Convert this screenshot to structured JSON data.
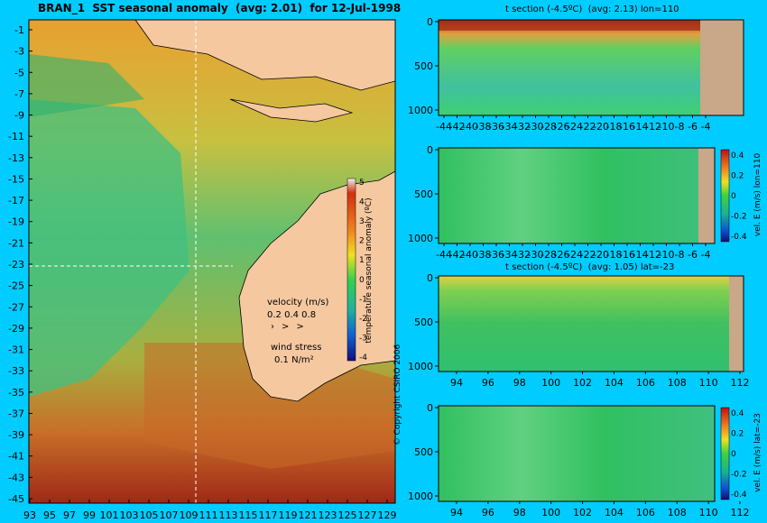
{
  "map": {
    "title": "BRAN_1  SST seasonal anomaly  (avg: 2.01)  for 12-Jul-1998",
    "y_ticks": [
      "-1",
      "-3",
      "-5",
      "-7",
      "-9",
      "-11",
      "-13",
      "-15",
      "-17",
      "-19",
      "-21",
      "-23",
      "-25",
      "-27",
      "-29",
      "-31",
      "-33",
      "-35",
      "-37",
      "-39",
      "-41",
      "-43",
      "-45"
    ],
    "x_ticks": [
      "93",
      "95",
      "97",
      "99",
      "101",
      "103",
      "105",
      "107",
      "109",
      "111",
      "113",
      "115",
      "117",
      "119",
      "121",
      "123",
      "125",
      "127",
      "129"
    ],
    "colorbar_ticks": [
      "5",
      "4",
      "3",
      "2",
      "1",
      "0",
      "-1",
      "-2",
      "-3",
      "-4"
    ],
    "colorbar_label": "temperature seasonal anomaly (ºC)",
    "velocity_label": "velocity (m/s)",
    "velocity_values": "0.2 0.4 0.8",
    "wind_label": "wind stress",
    "wind_value": "0.1 N/m²",
    "copyright": "© Copyright CSIRO 2006",
    "colors": {
      "land": "#f5c8a0",
      "ocean_bg": "#00ccff",
      "warm": "#e08020",
      "cool": "#30c060"
    }
  },
  "panels": [
    {
      "title": "t section (-4.5ºC)  (avg: 2.13) lon=110",
      "y_ticks": [
        "0",
        "500",
        "1000"
      ],
      "x_ticks": [
        "-44",
        "-42",
        "-40",
        "-38",
        "-36",
        "-34",
        "-32",
        "-30",
        "-28",
        "-26",
        "-24",
        "-22",
        "-20",
        "-18",
        "-16",
        "-14",
        "-12",
        "-10",
        "-8",
        "-6",
        "-4"
      ],
      "colorbar": false
    },
    {
      "title": "",
      "y_ticks": [
        "0",
        "500",
        "1000"
      ],
      "x_ticks": [
        "-44",
        "-42",
        "-40",
        "-38",
        "-36",
        "-34",
        "-32",
        "-30",
        "-28",
        "-26",
        "-24",
        "-22",
        "-20",
        "-18",
        "-16",
        "-14",
        "-12",
        "-10",
        "-8",
        "-6",
        "-4"
      ],
      "colorbar": true,
      "colorbar_ticks": [
        "0.4",
        "0.2",
        "0",
        "-0.2",
        "-0.4"
      ],
      "colorbar_label": "vel. E (m/s) lon=110"
    },
    {
      "title": "t section (-4.5ºC)  (avg: 1.05) lat=-23",
      "y_ticks": [
        "0",
        "500",
        "1000"
      ],
      "x_ticks": [
        "94",
        "96",
        "98",
        "100",
        "102",
        "104",
        "106",
        "108",
        "110",
        "112"
      ],
      "colorbar": false
    },
    {
      "title": "",
      "y_ticks": [
        "0",
        "500",
        "1000"
      ],
      "x_ticks": [
        "94",
        "96",
        "98",
        "100",
        "102",
        "104",
        "106",
        "108",
        "110",
        "112"
      ],
      "colorbar": true,
      "colorbar_ticks": [
        "0.4",
        "0.2",
        "0",
        "-0.2",
        "-0.4"
      ],
      "colorbar_label": "vel. E (m/s) lat=-23"
    }
  ],
  "chart_data": [
    {
      "type": "heatmap",
      "title": "BRAN_1  SST seasonal anomaly  (avg: 2.01)  for 12-Jul-1998",
      "xlim": [
        93,
        130
      ],
      "ylim": [
        -45,
        0
      ],
      "colorbar_range": [
        -4,
        5
      ],
      "colorbar_label": "temperature seasonal anomaly (ºC)"
    },
    {
      "type": "heatmap",
      "title": "t section (-4.5ºC)  (avg: 2.13) lon=110",
      "xlim": [
        -45,
        -3
      ],
      "ylim": [
        1050,
        0
      ]
    },
    {
      "type": "heatmap",
      "xlim": [
        -45,
        -3
      ],
      "ylim": [
        1050,
        0
      ],
      "colorbar_range": [
        -0.4,
        0.4
      ],
      "colorbar_label": "vel. E (m/s) lon=110"
    },
    {
      "type": "heatmap",
      "title": "t section (-4.5ºC)  (avg: 1.05) lat=-23",
      "xlim": [
        93,
        114
      ],
      "ylim": [
        1050,
        0
      ]
    },
    {
      "type": "heatmap",
      "xlim": [
        93,
        114
      ],
      "ylim": [
        1050,
        0
      ],
      "colorbar_range": [
        -0.4,
        0.4
      ],
      "colorbar_label": "vel. E (m/s) lat=-23"
    }
  ]
}
